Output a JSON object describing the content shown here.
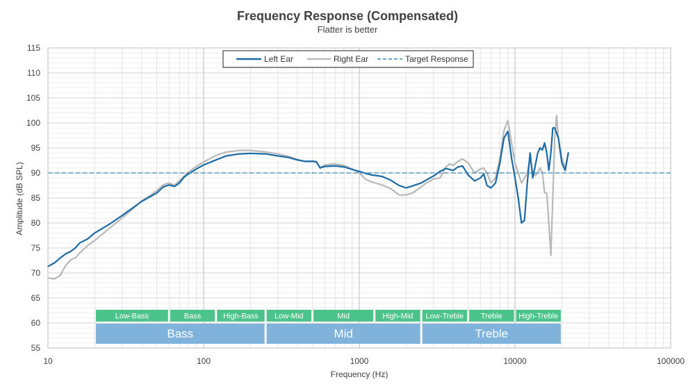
{
  "chart_data": {
    "type": "line",
    "title": "Frequency Response (Compensated)",
    "subtitle": "Flatter is better",
    "xlabel": "Frequency (Hz)",
    "ylabel": "Amplitude (dB SPL)",
    "xscale": "log",
    "xlim": [
      10,
      100000
    ],
    "ylim": [
      55,
      115
    ],
    "x_ticks": [
      10,
      100,
      1000,
      10000,
      100000
    ],
    "x_tick_labels": [
      "10",
      "100",
      "1000",
      "10000",
      "100000"
    ],
    "y_ticks": [
      55,
      60,
      65,
      70,
      75,
      80,
      85,
      90,
      95,
      100,
      105,
      110,
      115
    ],
    "grid": true,
    "legend": {
      "placement": "top-center"
    },
    "colors": {
      "left": "#1a6aa5",
      "right": "#b8b8b8",
      "target": "#3a85b5",
      "band_green": "#4cc38a",
      "group_blue": "#7fb3dc"
    },
    "series": [
      {
        "name": "Left Ear",
        "style": "solid",
        "points": [
          [
            10,
            71.3
          ],
          [
            11,
            72
          ],
          [
            12,
            73
          ],
          [
            13,
            73.8
          ],
          [
            14,
            74.3
          ],
          [
            15,
            75
          ],
          [
            16,
            76
          ],
          [
            18,
            76.8
          ],
          [
            20,
            78
          ],
          [
            25,
            79.8
          ],
          [
            30,
            81.5
          ],
          [
            35,
            83
          ],
          [
            40,
            84.3
          ],
          [
            50,
            86
          ],
          [
            55,
            87.2
          ],
          [
            60,
            87.6
          ],
          [
            65,
            87.3
          ],
          [
            70,
            88
          ],
          [
            75,
            89.2
          ],
          [
            80,
            89.8
          ],
          [
            90,
            90.8
          ],
          [
            100,
            91.6
          ],
          [
            120,
            92.6
          ],
          [
            140,
            93.4
          ],
          [
            170,
            93.8
          ],
          [
            200,
            93.9
          ],
          [
            250,
            93.8
          ],
          [
            300,
            93.4
          ],
          [
            350,
            93.1
          ],
          [
            400,
            92.6
          ],
          [
            450,
            92.3
          ],
          [
            500,
            92.3
          ],
          [
            530,
            92.2
          ],
          [
            560,
            91
          ],
          [
            600,
            91.3
          ],
          [
            700,
            91.4
          ],
          [
            800,
            91.2
          ],
          [
            900,
            90.7
          ],
          [
            1000,
            90.3
          ],
          [
            1100,
            89.9
          ],
          [
            1200,
            89.6
          ],
          [
            1400,
            89.3
          ],
          [
            1600,
            88.5
          ],
          [
            1800,
            87.5
          ],
          [
            2000,
            87
          ],
          [
            2200,
            87.4
          ],
          [
            2500,
            88
          ],
          [
            2700,
            88.6
          ],
          [
            3000,
            89.4
          ],
          [
            3300,
            90.3
          ],
          [
            3600,
            90.9
          ],
          [
            4000,
            90.5
          ],
          [
            4300,
            91.2
          ],
          [
            4600,
            91.4
          ],
          [
            5000,
            89.6
          ],
          [
            5500,
            88.4
          ],
          [
            6000,
            89
          ],
          [
            6300,
            89.8
          ],
          [
            6600,
            87.5
          ],
          [
            7000,
            87
          ],
          [
            7500,
            88
          ],
          [
            8000,
            92
          ],
          [
            8500,
            97
          ],
          [
            9000,
            98.3
          ],
          [
            9500,
            93
          ],
          [
            10000,
            89
          ],
          [
            10500,
            85
          ],
          [
            11000,
            80
          ],
          [
            11500,
            80.5
          ],
          [
            12000,
            88
          ],
          [
            12500,
            94
          ],
          [
            13000,
            89
          ],
          [
            13500,
            91.5
          ],
          [
            14000,
            94
          ],
          [
            14500,
            95
          ],
          [
            15000,
            94.6
          ],
          [
            15500,
            96
          ],
          [
            16000,
            94
          ],
          [
            16500,
            90.5
          ],
          [
            17000,
            94
          ],
          [
            17500,
            99
          ],
          [
            18000,
            99
          ],
          [
            19000,
            97
          ],
          [
            20000,
            92
          ],
          [
            21000,
            90.5
          ],
          [
            22000,
            94
          ]
        ]
      },
      {
        "name": "Right Ear",
        "style": "solid",
        "points": [
          [
            10,
            69
          ],
          [
            11,
            68.8
          ],
          [
            12,
            69.5
          ],
          [
            13,
            71.5
          ],
          [
            14,
            72.6
          ],
          [
            15,
            73
          ],
          [
            16,
            74
          ],
          [
            18,
            75.5
          ],
          [
            20,
            76.5
          ],
          [
            25,
            79
          ],
          [
            30,
            81
          ],
          [
            35,
            82.8
          ],
          [
            40,
            84.4
          ],
          [
            45,
            85.4
          ],
          [
            50,
            86.5
          ],
          [
            55,
            87.6
          ],
          [
            60,
            88
          ],
          [
            65,
            87.5
          ],
          [
            70,
            88.5
          ],
          [
            80,
            90.2
          ],
          [
            90,
            91.3
          ],
          [
            100,
            92.2
          ],
          [
            120,
            93.5
          ],
          [
            140,
            94.2
          ],
          [
            170,
            94.5
          ],
          [
            200,
            94.5
          ],
          [
            250,
            94.2
          ],
          [
            300,
            93.8
          ],
          [
            350,
            93.3
          ],
          [
            400,
            92.7
          ],
          [
            450,
            92.3
          ],
          [
            500,
            92.4
          ],
          [
            530,
            92.3
          ],
          [
            560,
            91
          ],
          [
            600,
            91.6
          ],
          [
            700,
            91.8
          ],
          [
            800,
            91.5
          ],
          [
            900,
            90.8
          ],
          [
            1000,
            90
          ],
          [
            1100,
            88.7
          ],
          [
            1200,
            88.2
          ],
          [
            1400,
            87.6
          ],
          [
            1600,
            86.8
          ],
          [
            1800,
            85.6
          ],
          [
            2000,
            85.6
          ],
          [
            2200,
            86
          ],
          [
            2500,
            87.2
          ],
          [
            2700,
            88
          ],
          [
            3000,
            88.8
          ],
          [
            3300,
            89
          ],
          [
            3600,
            91.2
          ],
          [
            3800,
            91.8
          ],
          [
            4000,
            91.5
          ],
          [
            4300,
            92.3
          ],
          [
            4600,
            92.8
          ],
          [
            5000,
            92
          ],
          [
            5500,
            90
          ],
          [
            6000,
            90.8
          ],
          [
            6300,
            91
          ],
          [
            6600,
            90
          ],
          [
            7000,
            88
          ],
          [
            7500,
            89
          ],
          [
            8000,
            93
          ],
          [
            8500,
            98.5
          ],
          [
            9000,
            100.5
          ],
          [
            9500,
            96
          ],
          [
            10000,
            92
          ],
          [
            10500,
            90
          ],
          [
            11000,
            88
          ],
          [
            11500,
            89
          ],
          [
            12000,
            90
          ],
          [
            12500,
            93
          ],
          [
            13000,
            90
          ],
          [
            13500,
            89.5
          ],
          [
            14000,
            90
          ],
          [
            14500,
            91
          ],
          [
            15000,
            90
          ],
          [
            15500,
            86
          ],
          [
            16000,
            86
          ],
          [
            16500,
            80
          ],
          [
            17000,
            73.5
          ],
          [
            17500,
            85
          ],
          [
            18000,
            97
          ],
          [
            18500,
            101.5
          ],
          [
            19000,
            97
          ],
          [
            20000,
            93
          ],
          [
            21000,
            91
          ],
          [
            22000,
            94
          ]
        ]
      },
      {
        "name": "Target Response",
        "style": "dashed",
        "points": [
          [
            10,
            90
          ],
          [
            100000,
            90
          ]
        ]
      }
    ],
    "bands": [
      {
        "label": "Low-Bass",
        "from": 20,
        "to": 60
      },
      {
        "label": "Bass",
        "from": 60,
        "to": 120
      },
      {
        "label": "High-Bass",
        "from": 120,
        "to": 250
      },
      {
        "label": "Low-Mid",
        "from": 250,
        "to": 500
      },
      {
        "label": "Mid",
        "from": 500,
        "to": 1250
      },
      {
        "label": "High-Mid",
        "from": 1250,
        "to": 2500
      },
      {
        "label": "Low-Treble",
        "from": 2500,
        "to": 5000
      },
      {
        "label": "Treble",
        "from": 5000,
        "to": 10000
      },
      {
        "label": "High-Treble",
        "from": 10000,
        "to": 20000
      }
    ],
    "groups": [
      {
        "label": "Bass",
        "from": 20,
        "to": 250
      },
      {
        "label": "Mid",
        "from": 250,
        "to": 2500
      },
      {
        "label": "Treble",
        "from": 2500,
        "to": 20000
      }
    ]
  }
}
